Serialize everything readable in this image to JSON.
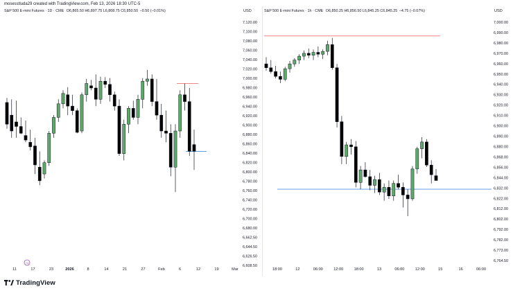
{
  "attribution": "mosesstluda29 created with TradingView.com, Feb 13, 2026 18:30 UTC-5",
  "brand": "TradingView",
  "colors": {
    "up_fill": "#5ea86a",
    "down_fill": "#000000",
    "outline": "#131722",
    "red_line": "#f05a5a",
    "blue_line": "#4c8fe0",
    "event_marker": "#9b59b6"
  },
  "left": {
    "legend": {
      "symbol": "S&P 500 E-mini Futures · 1D · CME",
      "values": "O6,865.50 H6,897.75 L6,808.75 C6,850.50",
      "change": "−0.50 (−0.01%)"
    },
    "currency": "USD",
    "event_marker": "74"
  },
  "right": {
    "legend": {
      "symbol": "S&P 500 E-mini Futures · 1h · CME",
      "values": "O6,850.25 H6,856.50 L6,845.25 C6,845.25",
      "change": "−4.75 (−0.07%)"
    },
    "currency": "USD"
  },
  "chart_data": [
    {
      "type": "candlestick",
      "title": "S&P 500 E-mini Futures · 1D · CME",
      "y_axis_labels": [
        "7,120.00",
        "7,100.00",
        "7,080.00",
        "7,060.00",
        "7,040.00",
        "7,020.00",
        "7,000.00",
        "6,980.00",
        "6,960.00",
        "6,940.00",
        "6,920.00",
        "6,900.00",
        "6,880.00",
        "6,860.00",
        "6,840.00",
        "6,820.00",
        "6,800.00",
        "6,780.00",
        "6,760.00",
        "6,740.00",
        "6,720.00",
        "6,700.00",
        "6,680.00",
        "6,662.50",
        "6,644.50",
        "6,626.50",
        "6,608.50"
      ],
      "x_axis_labels": [
        "11",
        "17",
        "23",
        "2026",
        "8",
        "14",
        "21",
        "27",
        "Feb",
        "6",
        "12",
        "19",
        "Mar"
      ],
      "ohlc": [
        [
          6958,
          6968,
          6900,
          6910
        ],
        [
          6930,
          6965,
          6880,
          6895
        ],
        [
          6915,
          6962,
          6880,
          6905
        ],
        [
          6905,
          6925,
          6888,
          6890
        ],
        [
          6885,
          6918,
          6870,
          6875
        ],
        [
          6870,
          6898,
          6852,
          6860
        ],
        [
          6862,
          6880,
          6800,
          6820
        ],
        [
          6815,
          6850,
          6775,
          6785
        ],
        [
          6800,
          6830,
          6790,
          6825
        ],
        [
          6825,
          6895,
          6818,
          6890
        ],
        [
          6890,
          6930,
          6880,
          6925
        ],
        [
          6925,
          6965,
          6915,
          6955
        ],
        [
          6955,
          6985,
          6945,
          6978
        ],
        [
          6975,
          6992,
          6930,
          6950
        ],
        [
          6950,
          6975,
          6930,
          6940
        ],
        [
          6940,
          6945,
          6890,
          6892
        ],
        [
          6895,
          6980,
          6890,
          6975
        ],
        [
          6975,
          7010,
          6960,
          7000
        ],
        [
          6995,
          7008,
          6985,
          6990
        ],
        [
          6990,
          7020,
          6950,
          6965
        ],
        [
          6965,
          7015,
          6955,
          7005
        ],
        [
          7005,
          7014,
          6990,
          6998
        ],
        [
          6998,
          7012,
          6960,
          6975
        ],
        [
          6975,
          6982,
          6940,
          6950
        ],
        [
          6950,
          6965,
          6840,
          6845
        ],
        [
          6845,
          6920,
          6830,
          6910
        ],
        [
          6910,
          6950,
          6890,
          6945
        ],
        [
          6945,
          6962,
          6920,
          6925
        ],
        [
          6925,
          6975,
          6910,
          6965
        ],
        [
          6965,
          7012,
          6945,
          7005
        ],
        [
          7005,
          7030,
          6995,
          7010
        ],
        [
          7010,
          7020,
          6950,
          6960
        ],
        [
          6960,
          7010,
          6920,
          6930
        ],
        [
          6930,
          6955,
          6880,
          6895
        ],
        [
          6895,
          6940,
          6870,
          6890
        ],
        [
          6890,
          6910,
          6795,
          6815
        ],
        [
          6815,
          6910,
          6760,
          6895
        ],
        [
          6895,
          6985,
          6880,
          6975
        ],
        [
          6975,
          7000,
          6940,
          6960
        ],
        [
          6960,
          6990,
          6840,
          6850
        ],
        [
          6865,
          6898,
          6809,
          6850
        ]
      ],
      "levels": [
        {
          "name": "red",
          "y": 7000
        },
        {
          "name": "blue",
          "y": 6850
        }
      ],
      "ylim": [
        6598,
        7137
      ]
    },
    {
      "type": "candlestick",
      "title": "S&P 500 E-mini Futures · 1h · CME",
      "y_axis_labels": [
        "7,000.00",
        "6,990.00",
        "6,980.00",
        "6,970.00",
        "6,960.00",
        "6,950.00",
        "6,940.00",
        "6,930.00",
        "6,920.00",
        "6,910.00",
        "6,900.00",
        "6,890.00",
        "6,880.00",
        "6,868.00",
        "6,856.00",
        "6,844.00",
        "6,832.00",
        "6,822.00",
        "6,812.00",
        "6,802.00",
        "6,792.00",
        "6,782.00",
        "6,773.00",
        "6,764.50"
      ],
      "x_axis_labels": [
        "18:00",
        "12",
        "06:00",
        "12:00",
        "18:00",
        "13",
        "06:00",
        "12:00",
        "15",
        "16",
        "06:00"
      ],
      "ohlc": [
        [
          6966,
          6973,
          6959,
          6962
        ],
        [
          6962,
          6970,
          6956,
          6958
        ],
        [
          6958,
          6964,
          6951,
          6953
        ],
        [
          6953,
          6958,
          6946,
          6950
        ],
        [
          6950,
          6963,
          6948,
          6961
        ],
        [
          6961,
          6969,
          6957,
          6966
        ],
        [
          6966,
          6972,
          6963,
          6970
        ],
        [
          6970,
          6976,
          6966,
          6974
        ],
        [
          6974,
          6980,
          6970,
          6977
        ],
        [
          6977,
          6982,
          6972,
          6975
        ],
        [
          6975,
          6981,
          6970,
          6978
        ],
        [
          6978,
          6984,
          6973,
          6976
        ],
        [
          6976,
          6981,
          6971,
          6979
        ],
        [
          6979,
          6990,
          6975,
          6986
        ],
        [
          6986,
          6993,
          6960,
          6962
        ],
        [
          6962,
          6966,
          6900,
          6906
        ],
        [
          6906,
          6912,
          6862,
          6870
        ],
        [
          6870,
          6885,
          6862,
          6882
        ],
        [
          6882,
          6888,
          6872,
          6880
        ],
        [
          6880,
          6886,
          6838,
          6843
        ],
        [
          6843,
          6860,
          6836,
          6856
        ],
        [
          6856,
          6864,
          6848,
          6849
        ],
        [
          6849,
          6856,
          6835,
          6840
        ],
        [
          6840,
          6850,
          6832,
          6846
        ],
        [
          6846,
          6853,
          6830,
          6833
        ],
        [
          6833,
          6842,
          6824,
          6838
        ],
        [
          6838,
          6845,
          6826,
          6829
        ],
        [
          6829,
          6845,
          6824,
          6842
        ],
        [
          6842,
          6851,
          6836,
          6838
        ],
        [
          6838,
          6843,
          6817,
          6830
        ],
        [
          6830,
          6836,
          6808,
          6826
        ],
        [
          6826,
          6860,
          6824,
          6857
        ],
        [
          6857,
          6880,
          6852,
          6878
        ],
        [
          6878,
          6890,
          6868,
          6885
        ],
        [
          6885,
          6888,
          6859,
          6861
        ],
        [
          6861,
          6866,
          6842,
          6851
        ],
        [
          6850,
          6857,
          6845,
          6845
        ]
      ],
      "levels": [
        {
          "name": "red",
          "y": 6995
        },
        {
          "name": "blue",
          "y": 6836
        }
      ],
      "ylim": [
        6762,
        7010
      ]
    }
  ]
}
